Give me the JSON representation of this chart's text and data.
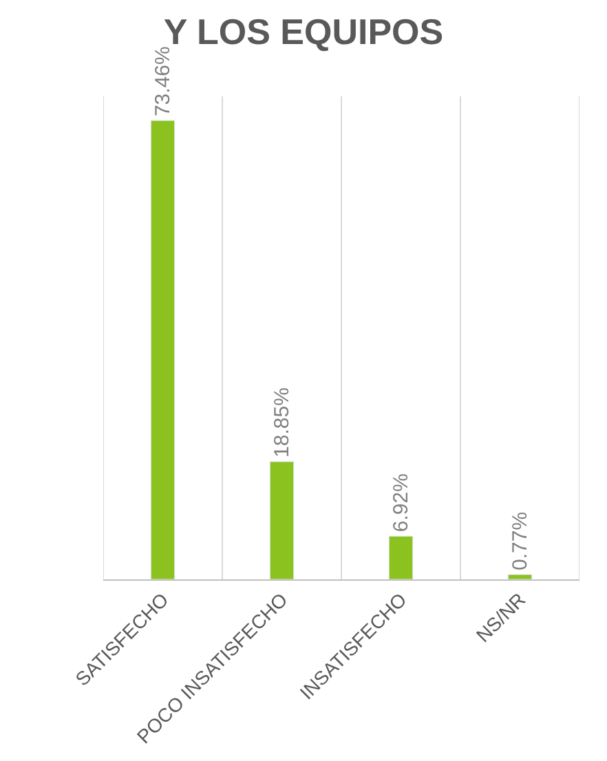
{
  "chart_data": {
    "type": "bar",
    "title": "Y LOS EQUIPOS",
    "categories": [
      "SATISFECHO",
      "POCO INSATISFECHO",
      "INSATISFECHO",
      "NS/NR"
    ],
    "values": [
      73.46,
      18.85,
      6.92,
      0.77
    ],
    "value_labels": [
      "73.46%",
      "18.85%",
      "6.92%",
      "0.77%"
    ],
    "color": "#8cc21f",
    "grid": "x",
    "legend": false
  }
}
